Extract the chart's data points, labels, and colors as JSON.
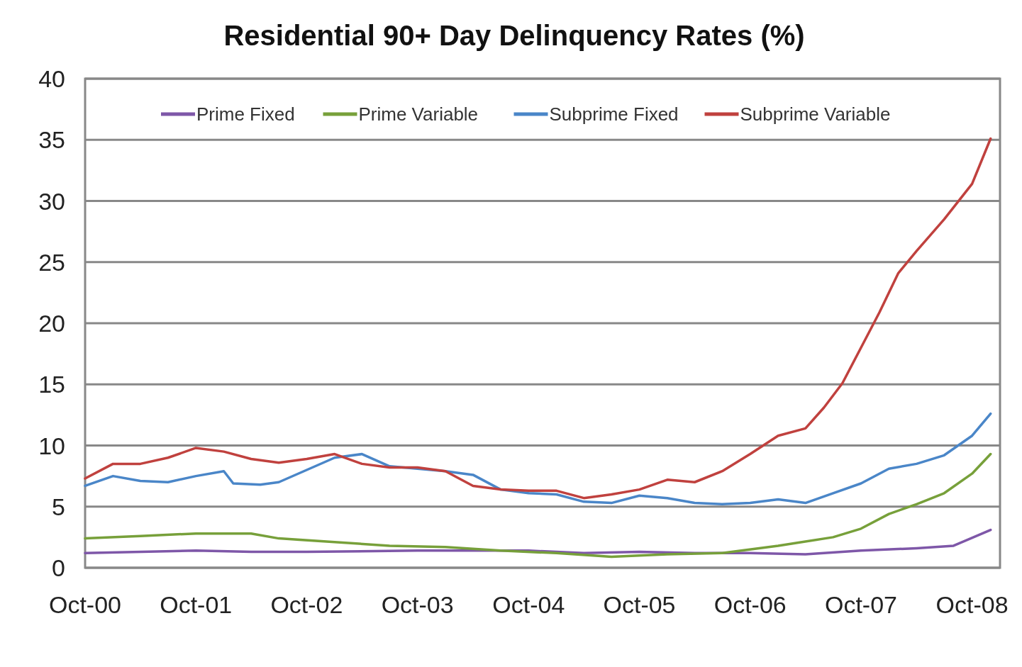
{
  "chart_data": {
    "type": "line",
    "title": "Residential 90+ Day Delinquency Rates (%)",
    "xlim": [
      "2000-10",
      "2009-01"
    ],
    "xticks": [
      {
        "value": "2000-10",
        "label": "Oct-00"
      },
      {
        "value": "2001-10",
        "label": "Oct-01"
      },
      {
        "value": "2002-10",
        "label": "Oct-02"
      },
      {
        "value": "2003-10",
        "label": "Oct-03"
      },
      {
        "value": "2004-10",
        "label": "Oct-04"
      },
      {
        "value": "2005-10",
        "label": "Oct-05"
      },
      {
        "value": "2006-10",
        "label": "Oct-06"
      },
      {
        "value": "2007-10",
        "label": "Oct-07"
      },
      {
        "value": "2008-10",
        "label": "Oct-08"
      }
    ],
    "ylim": [
      0,
      40
    ],
    "yticks": [
      0,
      5,
      10,
      15,
      20,
      25,
      30,
      35,
      40
    ],
    "grid": "y",
    "legend": "top",
    "marker": "none",
    "line_style": "solid",
    "series": [
      {
        "name": "Prime Fixed",
        "color": "#7e57a8",
        "x": [
          "2000-10",
          "2001-10",
          "2002-04",
          "2002-10",
          "2003-10",
          "2004-10",
          "2005-04",
          "2005-10",
          "2006-04",
          "2006-10",
          "2007-04",
          "2007-10",
          "2008-04",
          "2008-08",
          "2008-12"
        ],
        "values": [
          1.2,
          1.4,
          1.3,
          1.3,
          1.4,
          1.4,
          1.2,
          1.3,
          1.2,
          1.2,
          1.1,
          1.4,
          1.6,
          1.8,
          3.1
        ]
      },
      {
        "name": "Prime Variable",
        "color": "#77a03a",
        "x": [
          "2000-10",
          "2001-04",
          "2001-10",
          "2002-04",
          "2002-07",
          "2003-01",
          "2003-07",
          "2004-01",
          "2004-07",
          "2005-01",
          "2005-07",
          "2006-01",
          "2006-07",
          "2007-01",
          "2007-07",
          "2007-10",
          "2008-01",
          "2008-04",
          "2008-07",
          "2008-10",
          "2008-12"
        ],
        "values": [
          2.4,
          2.6,
          2.8,
          2.8,
          2.4,
          2.1,
          1.8,
          1.7,
          1.4,
          1.2,
          0.9,
          1.1,
          1.2,
          1.8,
          2.5,
          3.2,
          4.4,
          5.2,
          6.1,
          7.7,
          9.3
        ]
      },
      {
        "name": "Subprime Fixed",
        "color": "#4a86c8",
        "x": [
          "2000-10",
          "2001-01",
          "2001-04",
          "2001-07",
          "2001-10",
          "2002-01",
          "2002-02",
          "2002-05",
          "2002-07",
          "2002-10",
          "2003-01",
          "2003-04",
          "2003-07",
          "2003-10",
          "2004-01",
          "2004-04",
          "2004-07",
          "2004-10",
          "2005-01",
          "2005-04",
          "2005-07",
          "2005-10",
          "2006-01",
          "2006-04",
          "2006-07",
          "2006-10",
          "2007-01",
          "2007-04",
          "2007-07",
          "2007-10",
          "2008-01",
          "2008-04",
          "2008-07",
          "2008-10",
          "2008-12"
        ],
        "values": [
          6.7,
          7.5,
          7.1,
          7.0,
          7.5,
          7.9,
          6.9,
          6.8,
          7.0,
          8.0,
          9.0,
          9.3,
          8.3,
          8.1,
          7.9,
          7.6,
          6.4,
          6.1,
          6.0,
          5.4,
          5.3,
          5.9,
          5.7,
          5.3,
          5.2,
          5.3,
          5.6,
          5.3,
          6.1,
          6.9,
          8.1,
          8.5,
          9.2,
          10.8,
          12.6
        ]
      },
      {
        "name": "Subprime Variable",
        "color": "#c0413e",
        "x": [
          "2000-10",
          "2001-01",
          "2001-04",
          "2001-07",
          "2001-10",
          "2002-01",
          "2002-04",
          "2002-07",
          "2002-10",
          "2003-01",
          "2003-04",
          "2003-07",
          "2003-10",
          "2004-01",
          "2004-04",
          "2004-07",
          "2004-10",
          "2005-01",
          "2005-04",
          "2005-07",
          "2005-10",
          "2006-01",
          "2006-04",
          "2006-07",
          "2006-10",
          "2007-01",
          "2007-04",
          "2007-06",
          "2007-08",
          "2007-10",
          "2007-12",
          "2008-02",
          "2008-04",
          "2008-07",
          "2008-10",
          "2008-12"
        ],
        "values": [
          7.3,
          8.5,
          8.5,
          9.0,
          9.8,
          9.5,
          8.9,
          8.6,
          8.9,
          9.3,
          8.5,
          8.2,
          8.2,
          7.9,
          6.7,
          6.4,
          6.3,
          6.3,
          5.7,
          6.0,
          6.4,
          7.2,
          7.0,
          7.9,
          9.3,
          10.8,
          11.4,
          13.1,
          15.1,
          18.0,
          20.9,
          24.1,
          25.9,
          28.5,
          31.4,
          35.1
        ]
      }
    ]
  }
}
